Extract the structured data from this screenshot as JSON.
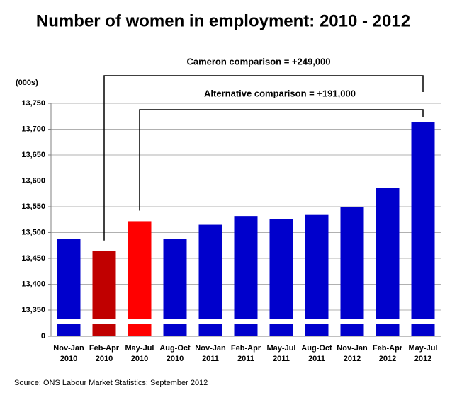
{
  "chart_data": {
    "type": "bar",
    "title": "Number of women in employment: 2010 - 2012",
    "y_label": "(000s)",
    "source": "Source: ONS Labour Market Statistics: September 2012",
    "annotations": [
      "Cameron comparison = +249,000",
      "Alternative comparison = +191,000"
    ],
    "categories": [
      "Nov-Jan\n2010",
      "Feb-Apr\n2010",
      "May-Jul\n2010",
      "Aug-Oct\n2010",
      "Nov-Jan\n2011",
      "Feb-Apr\n2011",
      "May-Jul\n2011",
      "Aug-Oct\n2011",
      "Nov-Jan\n2012",
      "Feb-Apr\n2012",
      "May-Jul\n2012"
    ],
    "values": [
      13487,
      13464,
      13522,
      13488,
      13515,
      13532,
      13526,
      13534,
      13550,
      13586,
      13713
    ],
    "colors": [
      "#0000cc",
      "#c00000",
      "#ff0000",
      "#0000cc",
      "#0000cc",
      "#0000cc",
      "#0000cc",
      "#0000cc",
      "#0000cc",
      "#0000cc",
      "#0000cc"
    ],
    "ylim": [
      0,
      13750
    ],
    "yticks": [
      0,
      {
        "value": 13350,
        "label": "13,350"
      },
      {
        "value": 13400,
        "label": "13,400"
      },
      {
        "value": 13450,
        "label": "13,450"
      },
      {
        "value": 13500,
        "label": "13,500"
      },
      {
        "value": 13550,
        "label": "13,550"
      },
      {
        "value": 13600,
        "label": "13,600"
      },
      {
        "value": 13650,
        "label": "13,650"
      },
      {
        "value": 13700,
        "label": "13,700"
      },
      {
        "value": 13750,
        "label": "13,750"
      }
    ],
    "grid": true
  }
}
